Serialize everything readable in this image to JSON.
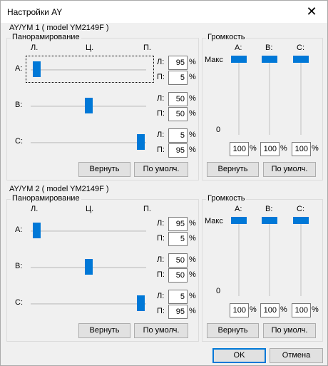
{
  "window": {
    "title": "Настройки AY"
  },
  "devices": [
    {
      "title": "AY/YM 1 ( model YM2149F )",
      "pan_group": "Панорамирование",
      "pan_headers": {
        "left": "Л.",
        "center": "Ц.",
        "right": "П."
      },
      "channels": [
        {
          "label": "A:",
          "pan": 0.05,
          "left_label": "Л:",
          "left": "95",
          "right_label": "П:",
          "right": "5"
        },
        {
          "label": "B:",
          "pan": 0.5,
          "left_label": "Л:",
          "left": "50",
          "right_label": "П:",
          "right": "50"
        },
        {
          "label": "C:",
          "pan": 0.95,
          "left_label": "Л:",
          "left": "5",
          "right_label": "П:",
          "right": "95"
        }
      ],
      "vol_group": "Громкость",
      "vol_headers": [
        "A:",
        "B:",
        "C:"
      ],
      "vol_max": "Макс",
      "vol_min": "0",
      "volumes": [
        {
          "value": "100",
          "level": 1.0
        },
        {
          "value": "100",
          "level": 1.0
        },
        {
          "value": "100",
          "level": 1.0
        }
      ],
      "reset_label": "Вернуть",
      "default_label": "По умолч."
    },
    {
      "title": "AY/YM 2 ( model YM2149F )",
      "pan_group": "Панорамирование",
      "pan_headers": {
        "left": "Л.",
        "center": "Ц.",
        "right": "П."
      },
      "channels": [
        {
          "label": "A:",
          "pan": 0.05,
          "left_label": "Л:",
          "left": "95",
          "right_label": "П:",
          "right": "5"
        },
        {
          "label": "B:",
          "pan": 0.5,
          "left_label": "Л:",
          "left": "50",
          "right_label": "П:",
          "right": "50"
        },
        {
          "label": "C:",
          "pan": 0.95,
          "left_label": "Л:",
          "left": "5",
          "right_label": "П:",
          "right": "95"
        }
      ],
      "vol_group": "Громкость",
      "vol_headers": [
        "A:",
        "B:",
        "C:"
      ],
      "vol_max": "Макс",
      "vol_min": "0",
      "volumes": [
        {
          "value": "100",
          "level": 1.0
        },
        {
          "value": "100",
          "level": 1.0
        },
        {
          "value": "100",
          "level": 1.0
        }
      ],
      "reset_label": "Вернуть",
      "default_label": "По умолч."
    }
  ],
  "pct_sign": "%",
  "footer": {
    "ok_label": "OK",
    "cancel_label": "Отмена"
  },
  "colors": {
    "accent": "#0078d7"
  }
}
